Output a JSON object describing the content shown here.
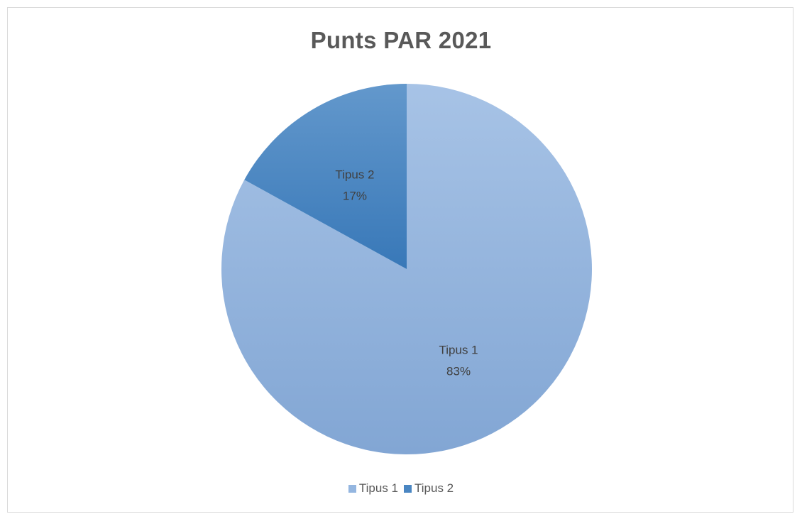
{
  "chart_data": {
    "type": "pie",
    "title": "Punts PAR 2021",
    "categories": [
      "Tipus 1",
      "Tipus 2"
    ],
    "values": [
      83,
      17
    ],
    "labels": [
      {
        "name": "Tipus 1",
        "percent": "83%"
      },
      {
        "name": "Tipus 2",
        "percent": "17%"
      }
    ],
    "colors": [
      "#94b6e0",
      "#4a86c2"
    ],
    "legend_position": "bottom",
    "legend": [
      "Tipus 1",
      "Tipus 2"
    ]
  }
}
